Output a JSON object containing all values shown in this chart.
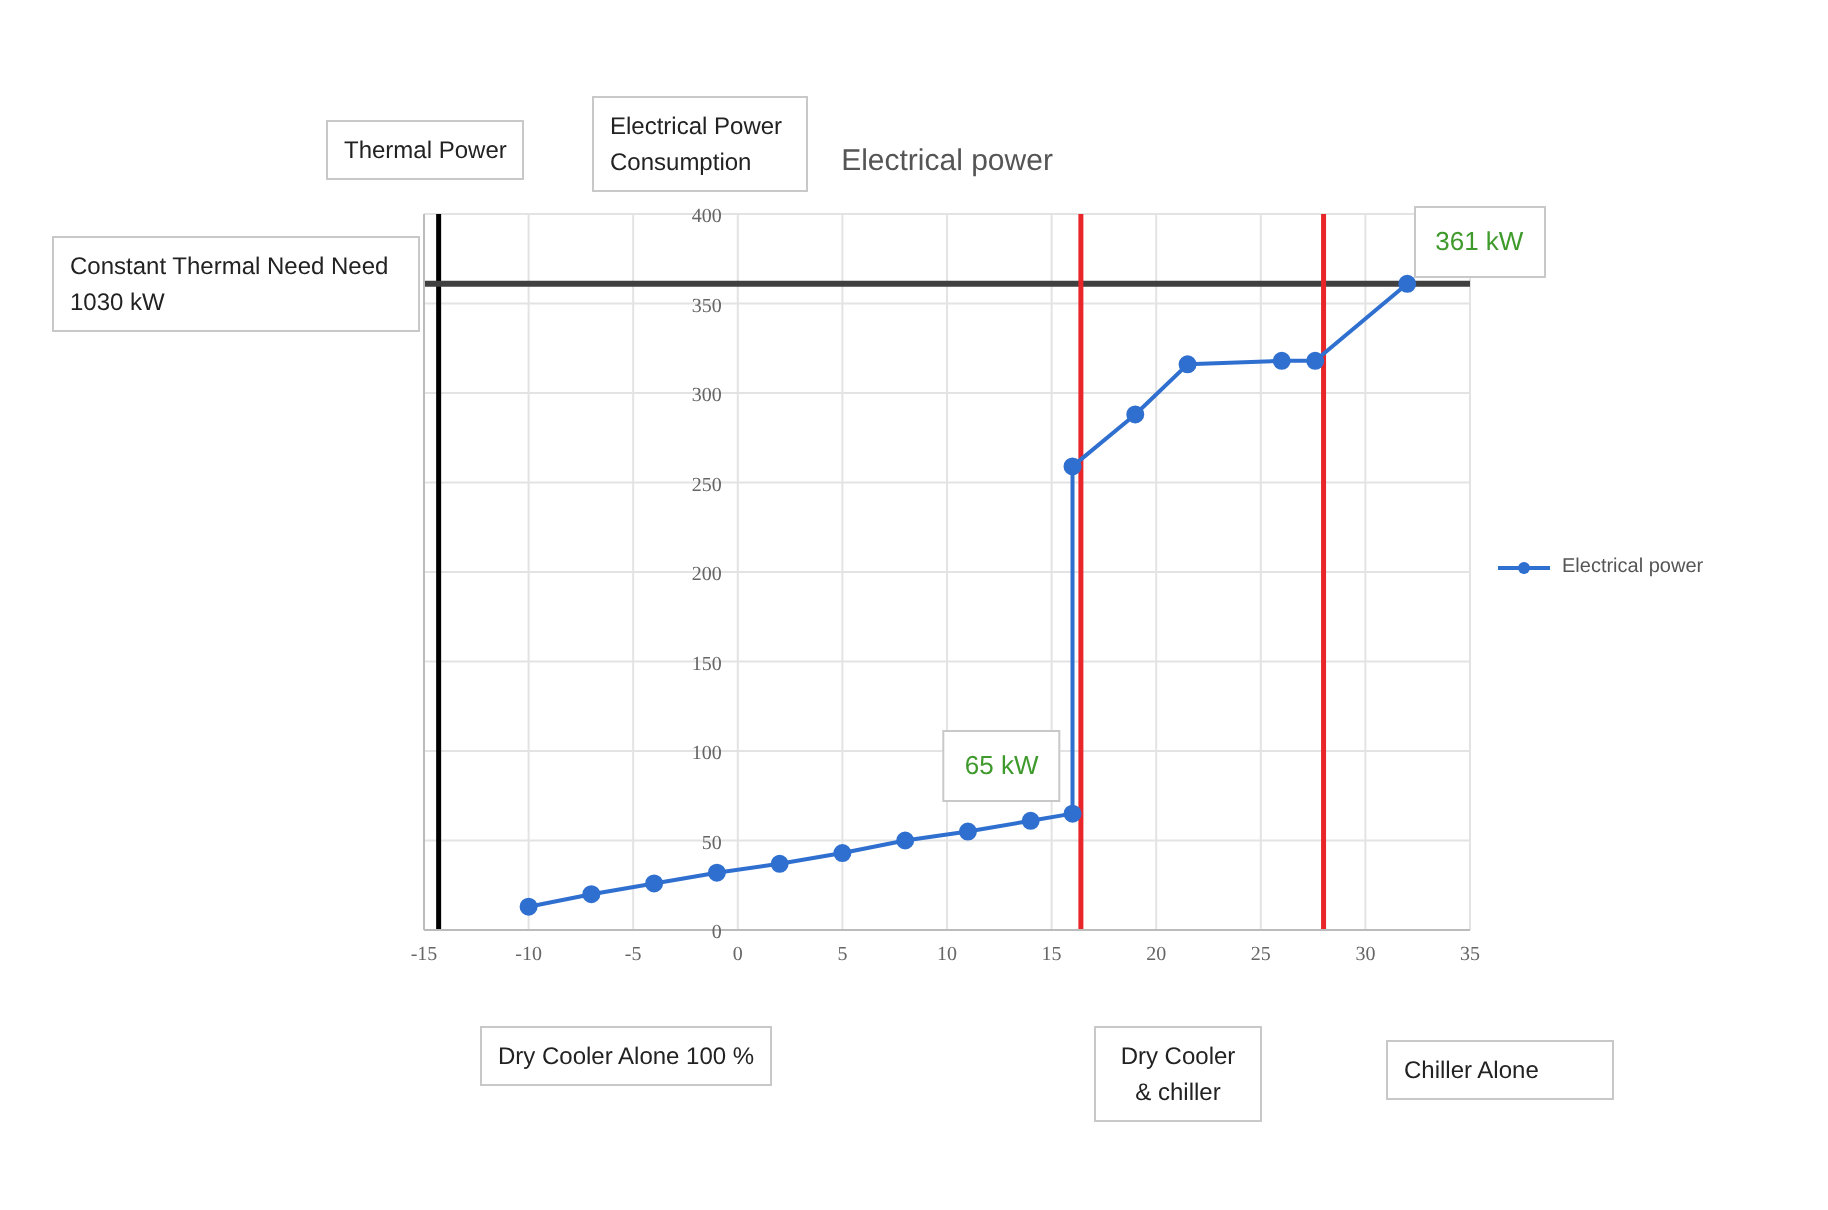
{
  "chart_data": {
    "type": "line",
    "title": "Electrical power",
    "x": [
      -10,
      -7,
      -4,
      -1,
      2,
      5,
      8,
      11,
      14,
      16,
      16,
      19,
      21.5,
      26,
      27.6,
      32
    ],
    "series": [
      {
        "name": "Electrical power",
        "color": "#2f6fcf",
        "values": [
          13,
          20,
          26,
          32,
          37,
          43,
          50,
          55,
          61,
          65,
          259,
          288,
          316,
          318,
          318,
          361
        ]
      }
    ],
    "xlim": [
      -15,
      35
    ],
    "xticks": [
      -15,
      -10,
      -5,
      0,
      5,
      10,
      15,
      20,
      25,
      30,
      35
    ],
    "ylim": [
      0,
      400
    ],
    "yticks": [
      0,
      50,
      100,
      150,
      200,
      250,
      300,
      350,
      400
    ],
    "grid": true,
    "legend": "right",
    "marker": "circle",
    "ref_lines": [
      {
        "axis": "x",
        "value": -14.3,
        "label": "Thermal Power",
        "color": "#000000"
      },
      {
        "axis": "y",
        "value": 361,
        "label": "Constant  Thermal Need Need 1030 kW",
        "color": "#404040"
      },
      {
        "axis": "x",
        "value": 16.4,
        "color": "#e8262a"
      },
      {
        "axis": "x",
        "value": 28,
        "color": "#e8262a"
      }
    ],
    "annotations": [
      "Electrical Power Consumption",
      {
        "text": "65 kW",
        "x": 16,
        "y": 65
      },
      {
        "text": "361 kW",
        "x": 32,
        "y": 361
      },
      "Dry Cooler Alone 100 %",
      "Dry Cooler & chiller",
      "Chiller Alone"
    ]
  }
}
